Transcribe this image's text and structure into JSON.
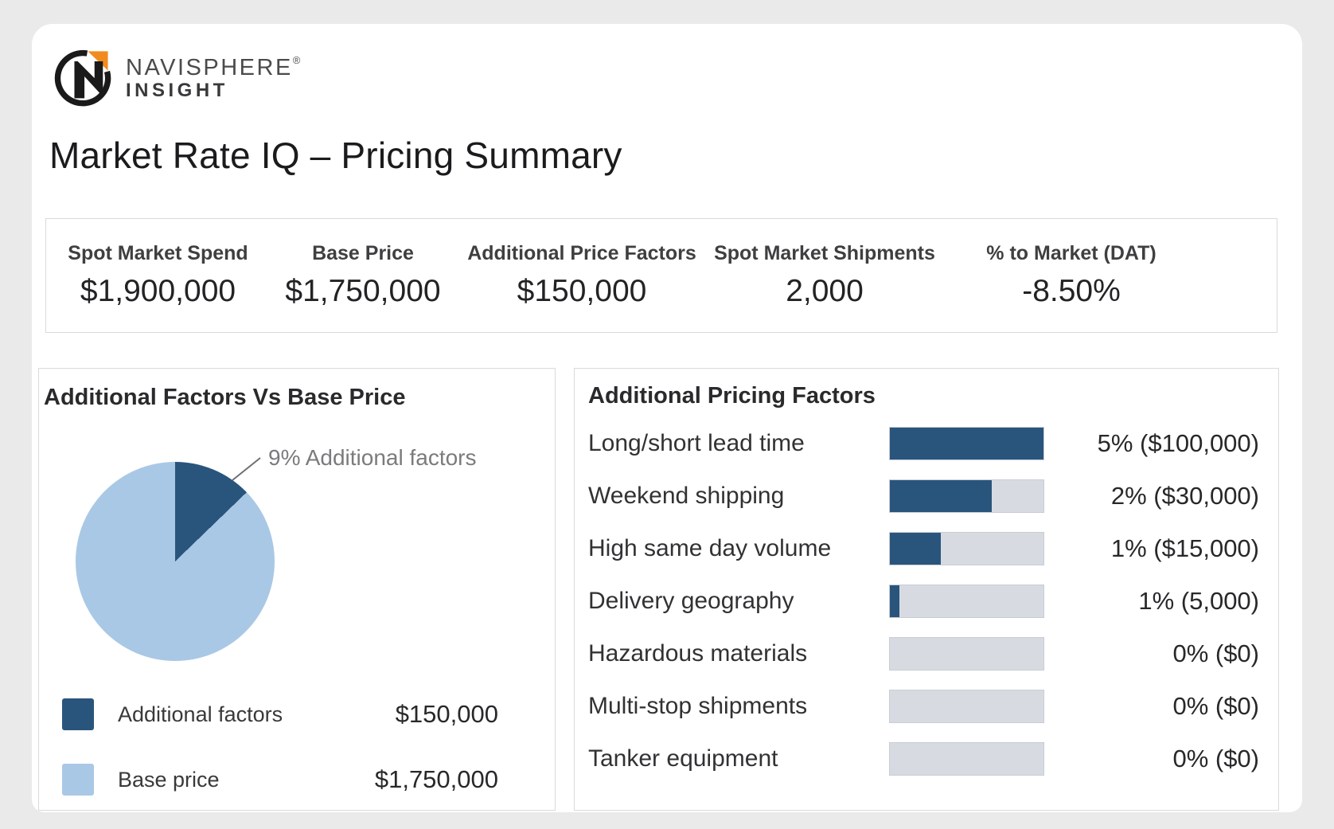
{
  "brand": {
    "name": "NAVISPHERE",
    "registered": "®",
    "sub": "INSIGHT"
  },
  "page_title": "Market Rate IQ – Pricing Summary",
  "kpis": [
    {
      "label": "Spot Market Spend",
      "value": "$1,900,000"
    },
    {
      "label": "Base Price",
      "value": "$1,750,000"
    },
    {
      "label": "Additional Price Factors",
      "value": "$150,000"
    },
    {
      "label": "Spot Market Shipments",
      "value": "2,000"
    },
    {
      "label": "% to Market (DAT)",
      "value": "-8.50%"
    }
  ],
  "colors": {
    "navy": "#29557D",
    "light_blue": "#A9C8E5",
    "track_gray": "#D7DBE1",
    "annotation_gray": "#7B7B7D",
    "logo_orange": "#F28B1F",
    "logo_black": "#1A1A1A"
  },
  "chart_data": [
    {
      "type": "pie",
      "title": "Additional Factors Vs Base Price",
      "annotation": "9% Additional factors",
      "legend_position": "bottom-left",
      "sweep_deg": 46,
      "slices": [
        {
          "label": "Additional factors",
          "value": 150000,
          "display": "$150,000",
          "percent": 9,
          "color": "#29557D"
        },
        {
          "label": "Base price",
          "value": 1750000,
          "display": "$1,750,000",
          "percent": 91,
          "color": "#A9C8E5"
        }
      ]
    },
    {
      "type": "bar",
      "title": "Additional Pricing Factors",
      "categories": [
        "Long/short lead time",
        "Weekend shipping",
        "High same day volume",
        "Delivery geography",
        "Hazardous materials",
        "Multi-stop shipments",
        "Tanker equipment"
      ],
      "series": [
        {
          "name": "percent",
          "values": [
            5,
            2,
            1,
            1,
            0,
            0,
            0
          ]
        }
      ],
      "rows": [
        {
          "label": "Long/short lead time",
          "percent": 5,
          "amount": 100000,
          "display": "5% ($100,000)",
          "fill_fraction": 1.0
        },
        {
          "label": "Weekend shipping",
          "percent": 2,
          "amount": 30000,
          "display": "2% ($30,000)",
          "fill_fraction": 0.665
        },
        {
          "label": "High same day volume",
          "percent": 1,
          "amount": 15000,
          "display": "1% ($15,000)",
          "fill_fraction": 0.33
        },
        {
          "label": "Delivery geography",
          "percent": 1,
          "amount": 5000,
          "display": "1% (5,000)",
          "fill_fraction": 0.06
        },
        {
          "label": "Hazardous materials",
          "percent": 0,
          "amount": 0,
          "display": "0% ($0)",
          "fill_fraction": 0
        },
        {
          "label": "Multi-stop shipments",
          "percent": 0,
          "amount": 0,
          "display": "0% ($0)",
          "fill_fraction": 0
        },
        {
          "label": "Tanker equipment",
          "percent": 0,
          "amount": 0,
          "display": "0% ($0)",
          "fill_fraction": 0
        }
      ]
    }
  ]
}
